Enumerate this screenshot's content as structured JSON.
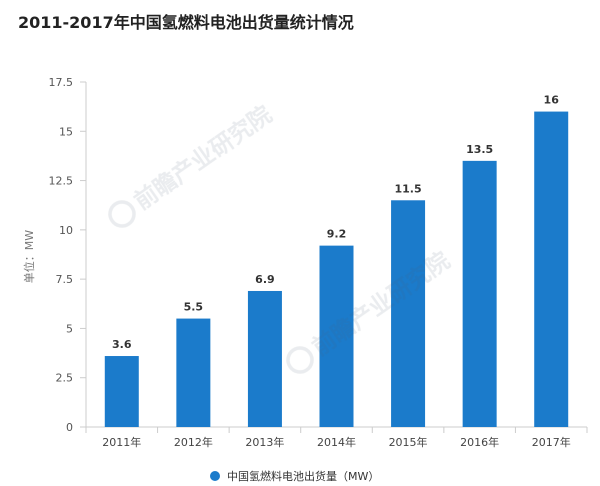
{
  "title": "2011-2017年中国氢燃料电池出货量统计情况",
  "watermark": "前瞻产业研究院",
  "chart_data": {
    "type": "bar",
    "categories": [
      "2011年",
      "2012年",
      "2013年",
      "2014年",
      "2015年",
      "2016年",
      "2017年"
    ],
    "series": [
      {
        "name": "中国氢燃料电池出货量（MW）",
        "values": [
          3.6,
          5.5,
          6.9,
          9.2,
          11.5,
          13.5,
          16
        ],
        "color": "#1b7bcb"
      }
    ],
    "ylabel": "单位：MW",
    "ylim": [
      0,
      17.5
    ],
    "yticks": [
      0,
      2.5,
      5,
      7.5,
      10,
      12.5,
      15,
      17.5
    ],
    "data_labels_shown": true,
    "grid": false,
    "legend": "bottom-center",
    "axis_color": "#cccccc",
    "tick_label_color": "#555555",
    "data_label_color": "#333333"
  }
}
